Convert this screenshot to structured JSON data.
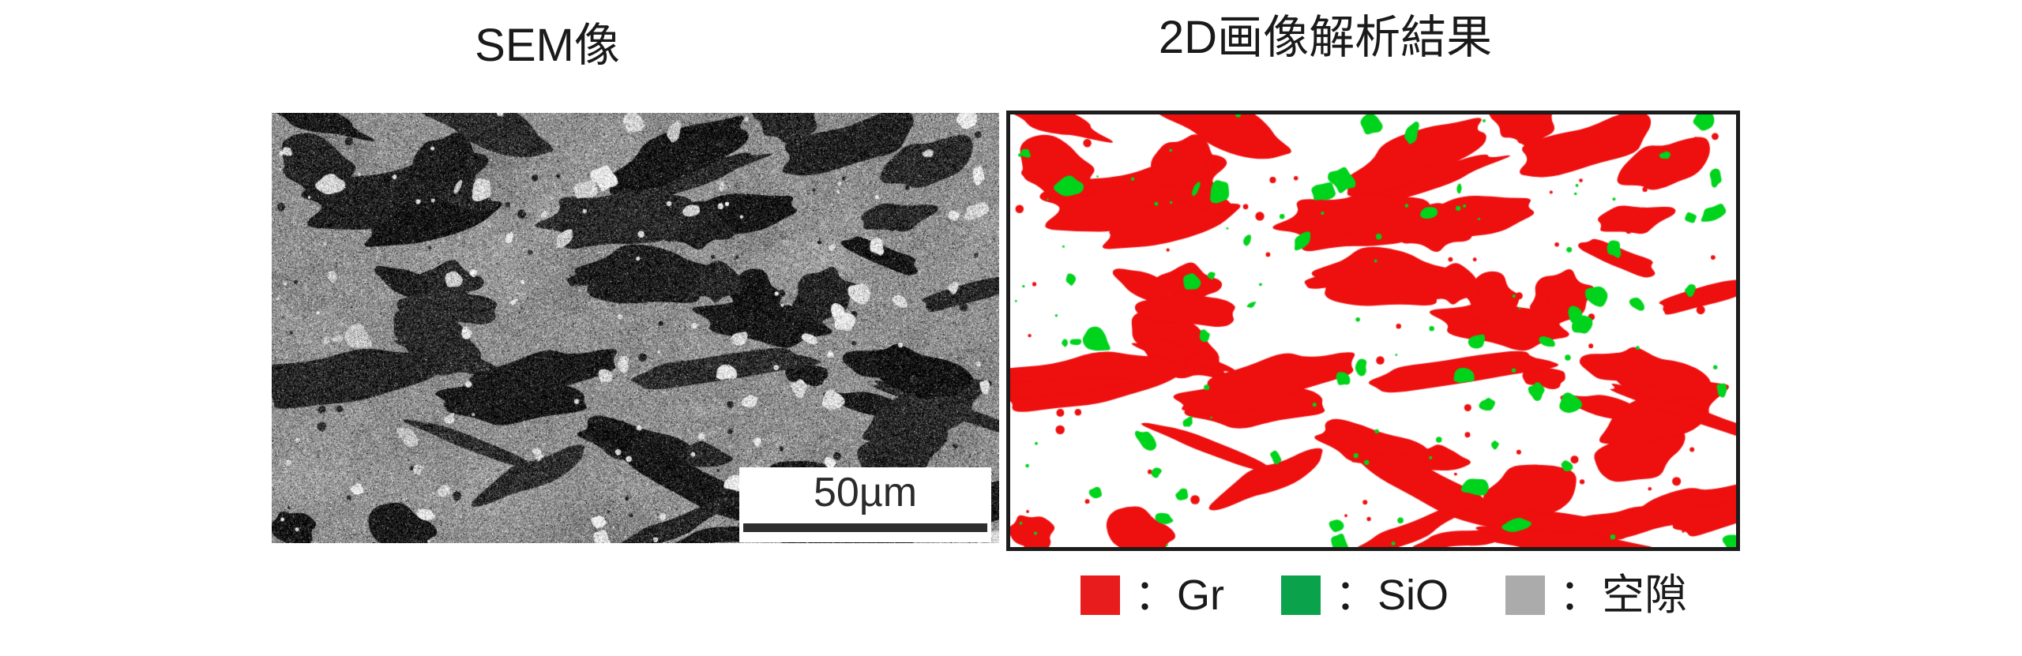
{
  "left_panel": {
    "title": "SEM像",
    "scale_bar_label": "50µm"
  },
  "right_panel": {
    "title": "2D画像解析結果"
  },
  "legend": {
    "items": [
      {
        "name": "gr",
        "label": "：Gr",
        "color": "#e81c1c"
      },
      {
        "name": "sio",
        "label": "：SiO",
        "color": "#0ba24c"
      },
      {
        "name": "void",
        "label": "：空隙",
        "color": "#ababab"
      }
    ]
  },
  "colors": {
    "title_text": "#1a1a1a",
    "seg_red": "#ee0f0f",
    "seg_green": "#00d31c",
    "seg_background": "#ffffff",
    "panel_border": "#1c1c1c",
    "sem_matrix": "#8f8f8f",
    "sem_flake_dark": "#1e1e1e",
    "sem_bright": "#dedede",
    "scalebar_bar": "#2e2e2e",
    "scalebar_text": "#2b2b2b"
  }
}
